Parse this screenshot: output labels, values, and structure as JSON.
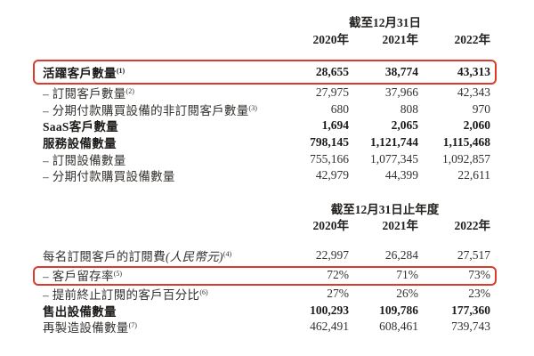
{
  "page": {
    "background": "#ffffff",
    "text_color": "#33312e",
    "highlight_color": "#dd3a2e"
  },
  "sections": [
    {
      "period_header": "截至12月31日",
      "years": [
        "2020年",
        "2021年",
        "2022年"
      ],
      "rows": [
        {
          "label": "活躍客戶數量",
          "footnote": "(1)",
          "bold": true,
          "boxed": true,
          "values": [
            "28,655",
            "38,774",
            "43,313"
          ]
        },
        {
          "label": "– 訂閱客戶數量",
          "footnote": "(2)",
          "values": [
            "27,975",
            "37,966",
            "42,343"
          ]
        },
        {
          "label": "– 分期付款購買設備的非訂閱客戶數量",
          "footnote": "(3)",
          "values": [
            "680",
            "808",
            "970"
          ]
        },
        {
          "label": "SaaS客戶數量",
          "bold": true,
          "values": [
            "1,694",
            "2,065",
            "2,060"
          ]
        },
        {
          "label": "服務設備數量",
          "bold": true,
          "values": [
            "798,145",
            "1,121,744",
            "1,115,468"
          ]
        },
        {
          "label": "– 訂閱設備數量",
          "values": [
            "755,166",
            "1,077,345",
            "1,092,857"
          ]
        },
        {
          "label": "– 分期付款購買設備數量",
          "values": [
            "42,979",
            "44,399",
            "22,611"
          ]
        }
      ]
    },
    {
      "period_header": "截至12月31日止年度",
      "years": [
        "2020年",
        "2021年",
        "2022年"
      ],
      "rows": [
        {
          "label": "每名訂閱客戶的訂閱費",
          "label_italic": "(人民幣元)",
          "footnote": "(4)",
          "values": [
            "22,997",
            "26,284",
            "27,517"
          ]
        },
        {
          "label": "– 客戶留存率",
          "footnote": "(5)",
          "boxed": true,
          "values": [
            "72%",
            "71%",
            "73%"
          ]
        },
        {
          "label": "– 提前終止訂閱的客戶百分比",
          "footnote": "(6)",
          "values": [
            "27%",
            "26%",
            "23%"
          ]
        },
        {
          "label": "售出設備數量",
          "bold": true,
          "values": [
            "100,293",
            "109,786",
            "177,360"
          ]
        },
        {
          "label": "再製造設備數量",
          "footnote": "(7)",
          "values": [
            "462,491",
            "608,461",
            "739,743"
          ]
        }
      ]
    }
  ]
}
